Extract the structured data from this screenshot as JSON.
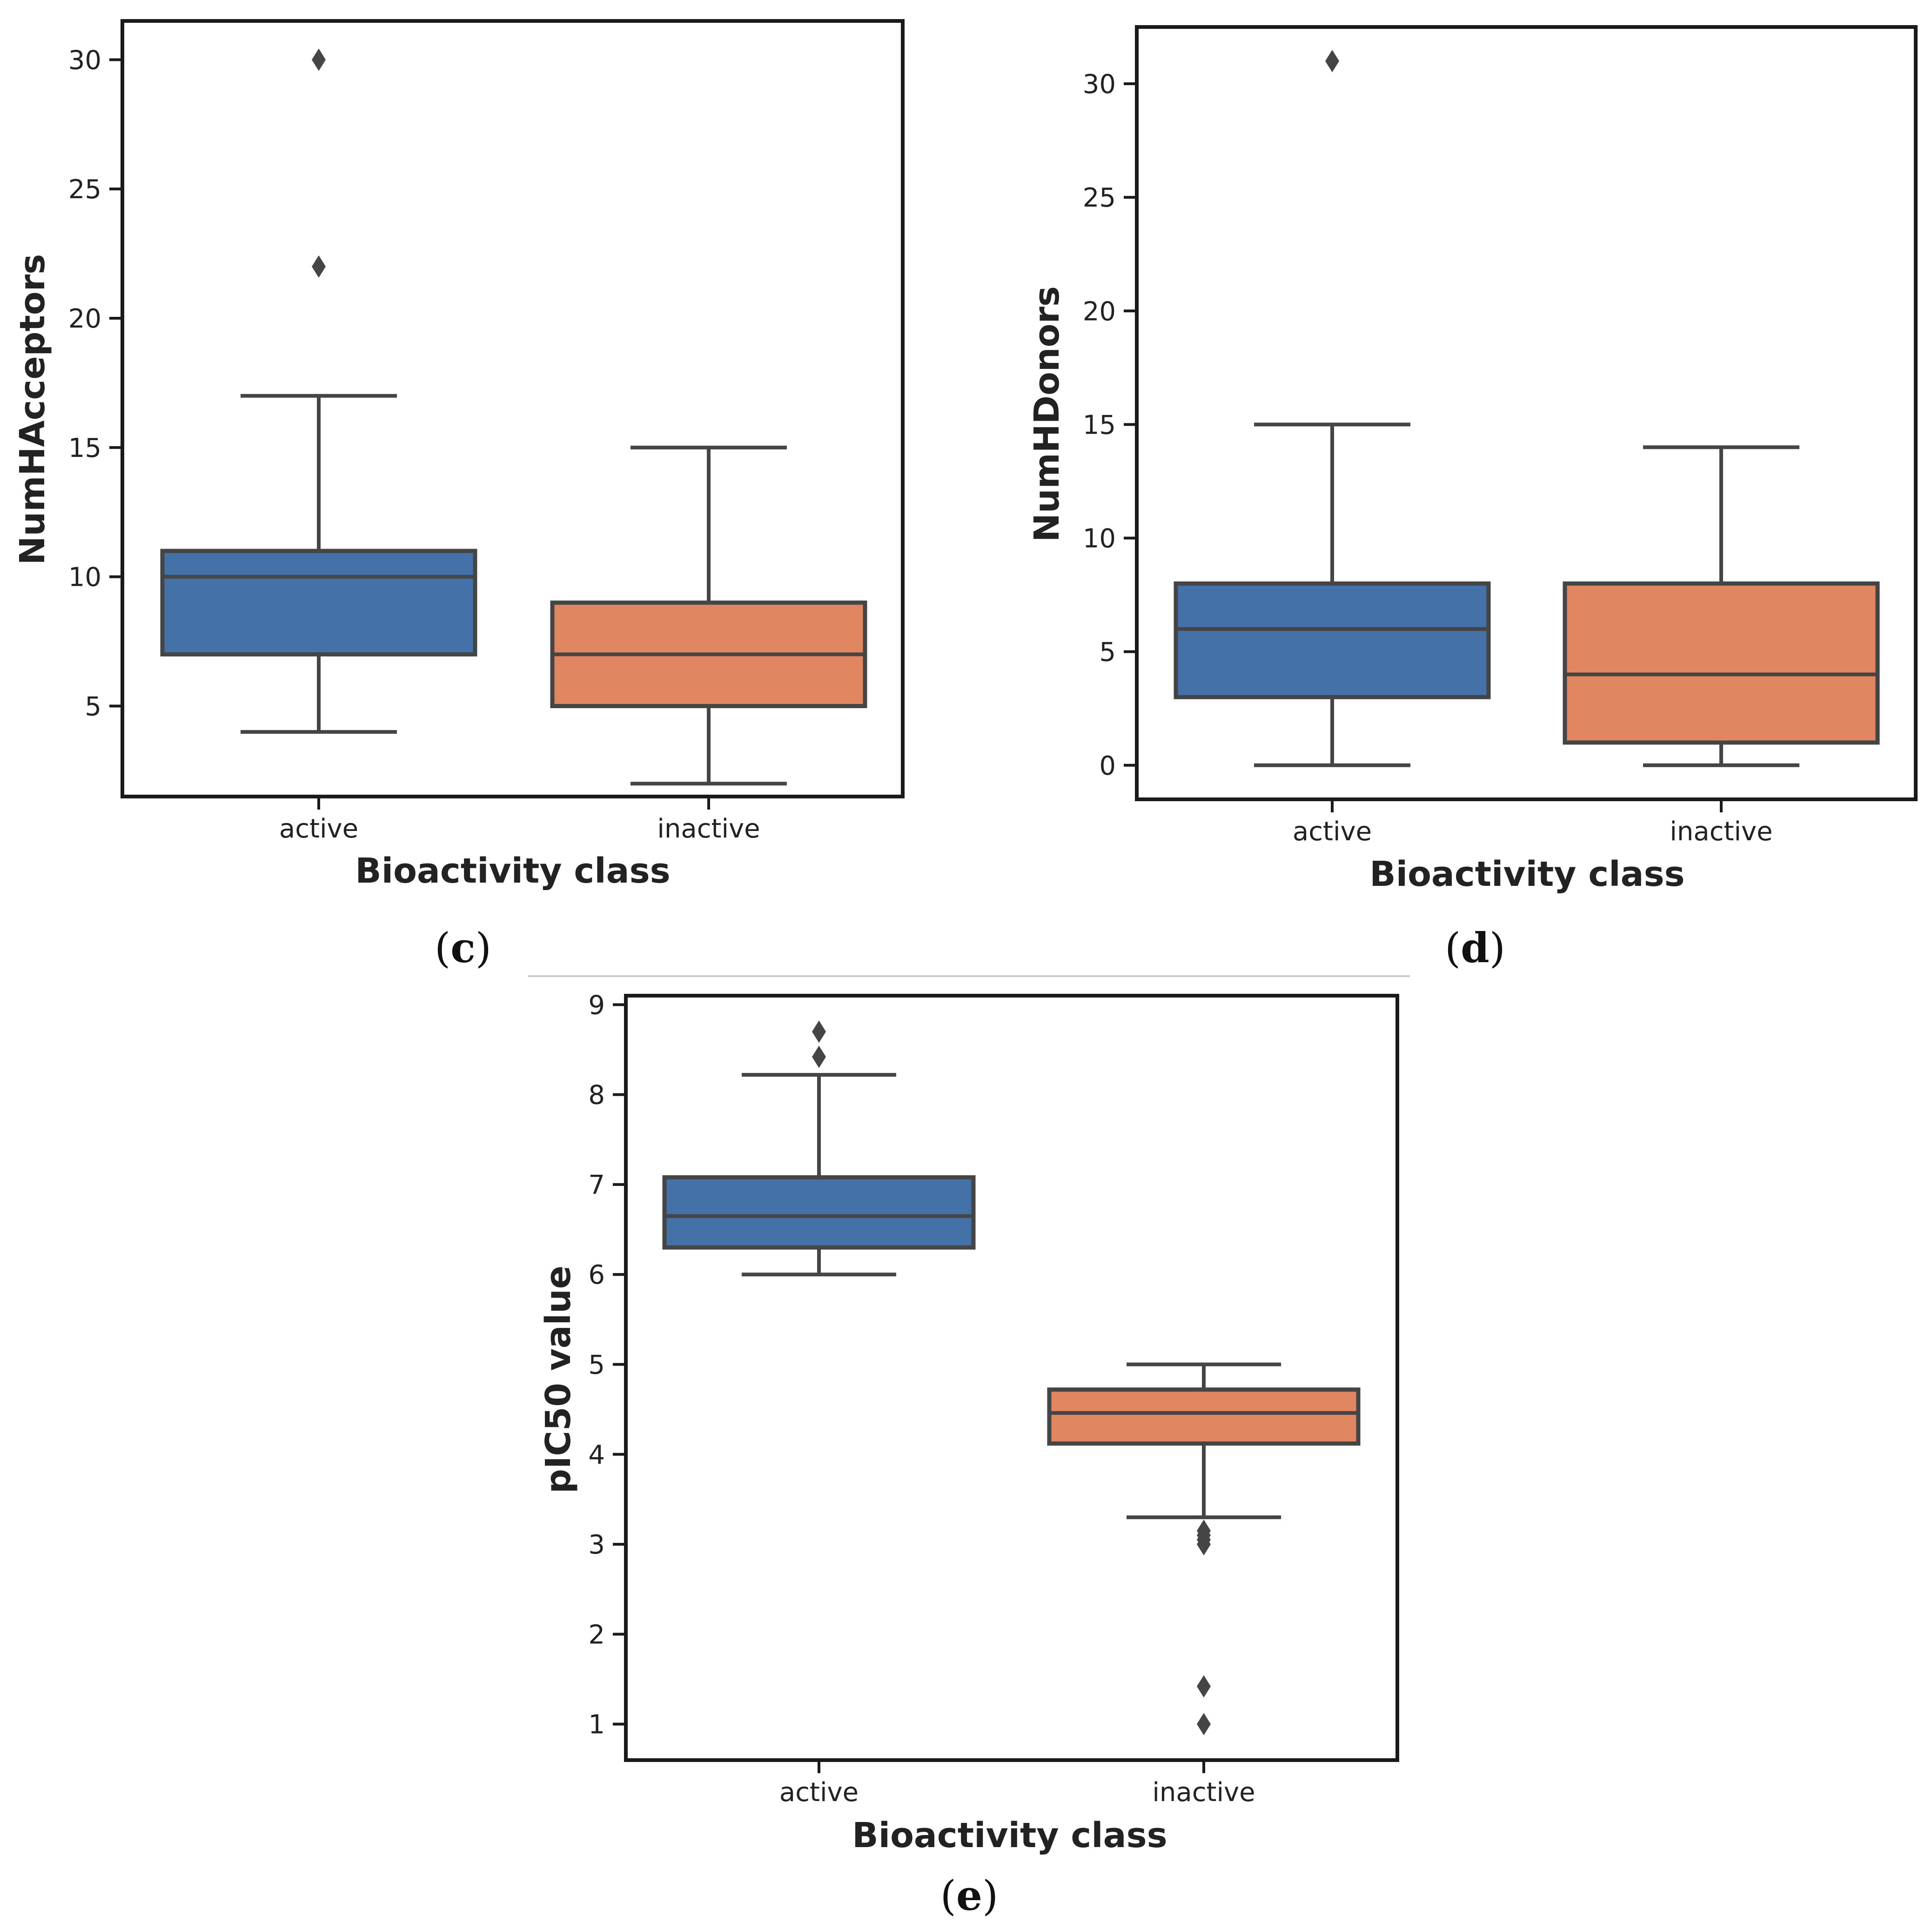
{
  "chart_data": [
    {
      "type": "box",
      "panel_label": "c",
      "xlabel": "Bioactivity class",
      "ylabel": "NumHAcceptors",
      "categories": [
        "active",
        "inactive"
      ],
      "ylim": [
        1.5,
        31.5
      ],
      "yticks": [
        "5",
        "10",
        "15",
        "20",
        "25",
        "30"
      ],
      "colors": [
        "#4472a8",
        "#e08660"
      ],
      "boxes": [
        {
          "category": "active",
          "whisker_low": 4,
          "q1": 7,
          "median": 10,
          "q3": 11,
          "whisker_high": 17,
          "outliers": [
            22,
            30
          ]
        },
        {
          "category": "inactive",
          "whisker_low": 2,
          "q1": 5,
          "median": 7,
          "q3": 9,
          "whisker_high": 15,
          "outliers": []
        }
      ]
    },
    {
      "type": "box",
      "panel_label": "d",
      "xlabel": "Bioactivity class",
      "ylabel": "NumHDonors",
      "categories": [
        "active",
        "inactive"
      ],
      "ylim": [
        -1.5,
        32.5
      ],
      "yticks": [
        "0",
        "5",
        "10",
        "15",
        "20",
        "25",
        "30"
      ],
      "colors": [
        "#4472a8",
        "#e08660"
      ],
      "boxes": [
        {
          "category": "active",
          "whisker_low": 0,
          "q1": 3,
          "median": 6,
          "q3": 8,
          "whisker_high": 15,
          "outliers": [
            31
          ]
        },
        {
          "category": "inactive",
          "whisker_low": 0,
          "q1": 1,
          "median": 4,
          "q3": 8,
          "whisker_high": 14,
          "outliers": []
        }
      ]
    },
    {
      "type": "box",
      "panel_label": "e",
      "xlabel": "Bioactivity class",
      "ylabel": "pIC50 value",
      "categories": [
        "active",
        "inactive"
      ],
      "ylim": [
        0.6,
        9.1
      ],
      "yticks": [
        "1",
        "2",
        "3",
        "4",
        "5",
        "6",
        "7",
        "8",
        "9"
      ],
      "colors": [
        "#4472a8",
        "#e08660"
      ],
      "boxes": [
        {
          "category": "active",
          "whisker_low": 6.0,
          "q1": 6.3,
          "median": 6.65,
          "q3": 7.08,
          "whisker_high": 8.22,
          "outliers": [
            8.42,
            8.7
          ]
        },
        {
          "category": "inactive",
          "whisker_low": 3.3,
          "q1": 4.12,
          "median": 4.46,
          "q3": 4.72,
          "whisker_high": 5.0,
          "outliers": [
            3.0,
            3.05,
            3.1,
            3.15,
            1.42,
            1.0
          ]
        }
      ]
    }
  ]
}
